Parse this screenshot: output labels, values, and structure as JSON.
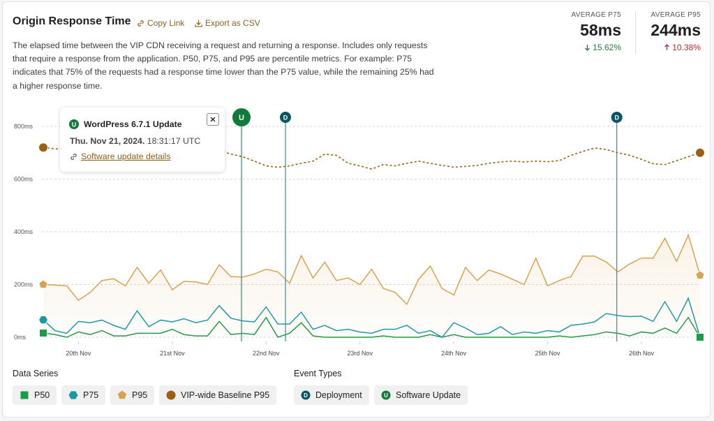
{
  "header": {
    "title": "Origin Response Time",
    "copy_link": "Copy Link",
    "export_csv": "Export as CSV",
    "description": "The elapsed time between the VIP CDN receiving a request and returning a response. Includes only requests that require a response from the application. P50, P75, and P95 are percentile metrics. For example: P75 indicates that 75% of the requests had a response time lower than the P75 value, while the remaining 25% had a higher response time."
  },
  "stats": [
    {
      "label": "AVERAGE P75",
      "value": "58ms",
      "change": "15.62%",
      "direction": "down",
      "color": "#1e7a3a"
    },
    {
      "label": "AVERAGE P95",
      "value": "244ms",
      "change": "10.38%",
      "direction": "up",
      "color": "#c0282d"
    }
  ],
  "chart_data": {
    "type": "line",
    "categories": [
      null,
      null,
      null,
      "20th Nov",
      null,
      null,
      null,
      null,
      null,
      null,
      null,
      "21st Nov",
      null,
      null,
      null,
      null,
      null,
      null,
      null,
      "22nd Nov",
      null,
      null,
      null,
      null,
      null,
      null,
      null,
      "23rd Nov",
      null,
      null,
      null,
      null,
      null,
      null,
      null,
      "24th Nov",
      null,
      null,
      null,
      null,
      null,
      null,
      null,
      "25th Nov",
      null,
      null,
      null,
      null,
      null,
      null,
      null,
      "26th Nov",
      null,
      null,
      null,
      null,
      null
    ],
    "series": [
      {
        "name": "P50",
        "color": "#1e9b45",
        "marker": "square",
        "values": [
          16,
          10,
          0,
          20,
          10,
          25,
          5,
          5,
          15,
          15,
          15,
          30,
          10,
          5,
          5,
          60,
          10,
          15,
          10,
          75,
          0,
          15,
          55,
          5,
          0,
          0,
          0,
          0,
          0,
          5,
          0,
          0,
          0,
          10,
          0,
          10,
          0,
          0,
          0,
          0,
          0,
          0,
          0,
          0,
          5,
          0,
          5,
          10,
          20,
          15,
          5,
          20,
          15,
          35,
          15,
          75,
          0
        ]
      },
      {
        "name": "P75",
        "color": "#1a98a8",
        "marker": "hexagon",
        "values": [
          66,
          25,
          15,
          60,
          55,
          65,
          45,
          30,
          100,
          40,
          65,
          58,
          70,
          55,
          65,
          120,
          72,
          62,
          58,
          115,
          50,
          50,
          95,
          30,
          45,
          25,
          30,
          20,
          15,
          30,
          30,
          45,
          15,
          25,
          0,
          55,
          35,
          10,
          15,
          40,
          10,
          20,
          15,
          25,
          20,
          45,
          50,
          58,
          90,
          82,
          78,
          80,
          60,
          135,
          60,
          148,
          0
        ]
      },
      {
        "name": "P95",
        "color": "#d9a24f",
        "marker": "pentagon",
        "area": true,
        "values": [
          200,
          198,
          195,
          140,
          170,
          215,
          222,
          195,
          265,
          205,
          255,
          180,
          212,
          210,
          200,
          275,
          230,
          228,
          240,
          258,
          248,
          205,
          310,
          225,
          285,
          215,
          225,
          200,
          258,
          185,
          170,
          125,
          220,
          270,
          185,
          160,
          265,
          215,
          255,
          240,
          220,
          200,
          300,
          195,
          215,
          230,
          308,
          308,
          285,
          248,
          278,
          300,
          300,
          375,
          288,
          388,
          235
        ]
      },
      {
        "name": "VIP-wide Baseline P95",
        "color": "#9c5f12",
        "marker": "circle",
        "dashed": true,
        "values": [
          720,
          715,
          712,
          710,
          708,
          706,
          705,
          704,
          703,
          702,
          701,
          700,
          700,
          700,
          705,
          708,
          695,
          685,
          668,
          650,
          645,
          650,
          660,
          668,
          695,
          690,
          660,
          650,
          638,
          655,
          650,
          660,
          668,
          660,
          652,
          645,
          648,
          652,
          660,
          665,
          668,
          665,
          668,
          666,
          670,
          690,
          705,
          718,
          712,
          700,
          690,
          675,
          658,
          655,
          670,
          685,
          700
        ]
      }
    ],
    "ylim": [
      0,
      800
    ],
    "yticks": [
      {
        "value": 0,
        "label": "0ms"
      },
      {
        "value": 200,
        "label": "200ms"
      },
      {
        "value": 400,
        "label": "400ms"
      },
      {
        "value": 600,
        "label": "600ms"
      },
      {
        "value": 800,
        "label": "800ms"
      }
    ],
    "grid": true,
    "events": [
      {
        "letter": "U",
        "index": 16.9,
        "color": "#117a3a"
      },
      {
        "letter": "D",
        "index": 20.65,
        "color": "#0b5563"
      },
      {
        "letter": "D",
        "index": 48.9,
        "color": "#0b5563"
      }
    ]
  },
  "tooltip": {
    "letter": "U",
    "title": "WordPress 6.7.1 Update",
    "date": "Thu. Nov 21, 2024.",
    "time": "18:31:17 UTC",
    "link": "Software update details"
  },
  "legend": {
    "data_series_title": "Data Series",
    "event_types_title": "Event Types",
    "event_types": [
      {
        "letter": "D",
        "name": "Deployment",
        "color": "#0b5563"
      },
      {
        "letter": "U",
        "name": "Software Update",
        "color": "#117a3a"
      }
    ]
  }
}
